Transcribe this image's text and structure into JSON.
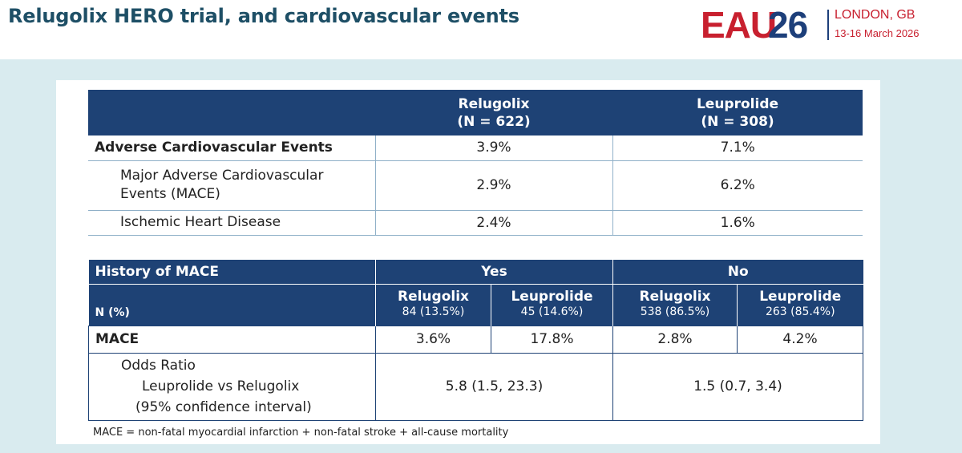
{
  "header": {
    "title": "Relugolix HERO trial, and cardiovascular events",
    "logo": {
      "eau": "EAU",
      "num": "26",
      "city": "LONDON, GB",
      "date": "13-16 March 2026"
    }
  },
  "table1": {
    "columns": [
      {
        "name": "Relugolix",
        "n": "(N = 622)"
      },
      {
        "name": "Leuprolide",
        "n": "(N = 308)"
      }
    ],
    "rows": [
      {
        "label": "Adverse Cardiovascular Events",
        "values": [
          "3.9%",
          "7.1%"
        ]
      },
      {
        "label_line1": "Major Adverse Cardiovascular",
        "label_line2": "Events (MACE)",
        "values": [
          "2.9%",
          "6.2%"
        ]
      },
      {
        "label": "Ischemic Heart Disease",
        "values": [
          "2.4%",
          "1.6%"
        ]
      }
    ]
  },
  "table2": {
    "header_label": "History of MACE",
    "groups": [
      "Yes",
      "No"
    ],
    "n_label": "N (%)",
    "subcolumns": [
      {
        "name": "Relugolix",
        "count": "84 (13.5%)"
      },
      {
        "name": "Leuprolide",
        "count": "45 (14.6%)"
      },
      {
        "name": "Relugolix",
        "count": "538 (86.5%)"
      },
      {
        "name": "Leuprolide",
        "count": "263 (85.4%)"
      }
    ],
    "mace": {
      "label": "MACE",
      "values": [
        "3.6%",
        "17.8%",
        "2.8%",
        "4.2%"
      ]
    },
    "odds": {
      "line1": "Odds Ratio",
      "line2": "Leuprolide vs Relugolix",
      "line3": "(95% confidence interval)",
      "values": [
        "5.8 (1.5, 23.3)",
        "1.5 (0.7, 3.4)"
      ]
    }
  },
  "footnote": "MACE = non-fatal myocardial infarction + non-fatal stroke + all-cause mortality"
}
